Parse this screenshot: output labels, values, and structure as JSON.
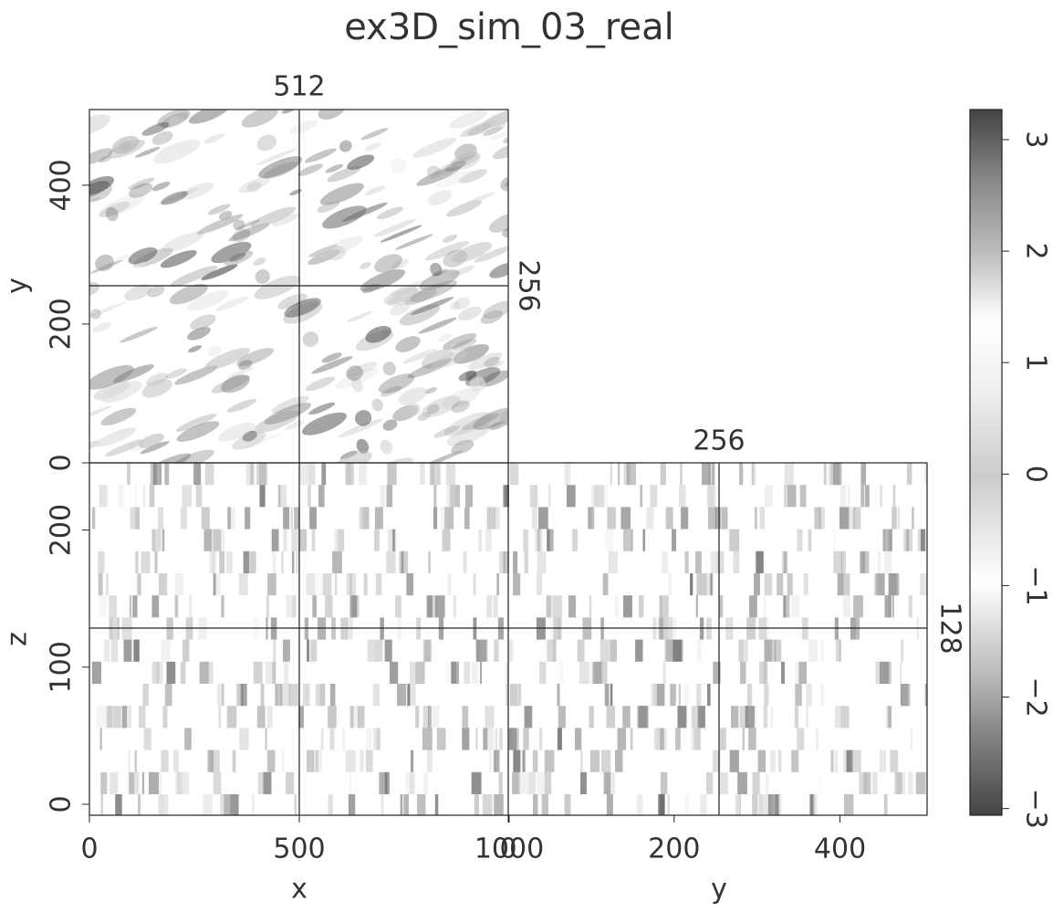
{
  "title": "ex3D_sim_03_real",
  "chart_data": [
    {
      "type": "image",
      "plane": "x-y",
      "ylabel": "y",
      "ylim": [
        0,
        509
      ],
      "yticks": [
        0,
        200,
        400
      ],
      "annotations": [
        "512",
        "256"
      ]
    },
    {
      "type": "image",
      "plane": "x-z",
      "xlabel": "x",
      "xlim": [
        0,
        1000
      ],
      "xticks": [
        0,
        500,
        1000
      ],
      "ylabel": "z",
      "ylim": [
        -8,
        249
      ],
      "yticks": [
        0,
        100,
        200
      ]
    },
    {
      "type": "image",
      "plane": "y-z",
      "xlabel": "y",
      "xlim": [
        0,
        505
      ],
      "xticks": [
        0,
        200,
        400
      ],
      "annotations": [
        "256",
        "128"
      ]
    },
    {
      "type": "colorbar",
      "ylim": [
        -3.06,
        3.27
      ],
      "yticks": [
        {
          "value": -3,
          "label": "−3"
        },
        {
          "value": -2,
          "label": "−2"
        },
        {
          "value": -1,
          "label": "−1"
        },
        0,
        1,
        2,
        3
      ]
    }
  ]
}
